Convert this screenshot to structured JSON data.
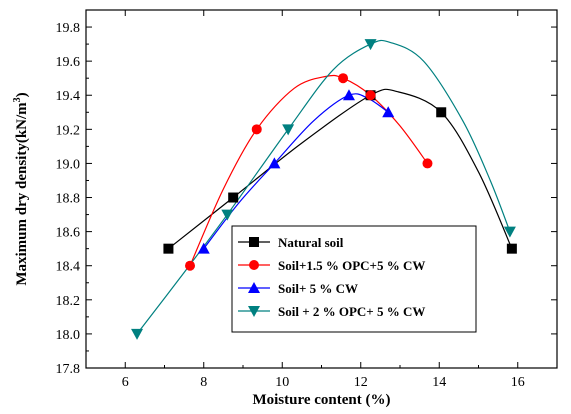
{
  "chart_data": {
    "type": "scatter",
    "xlabel": "Moisture content (%)",
    "ylabel_main": "Maximum dry density(kN/m",
    "ylabel_sup": "3",
    "ylabel_close": ")",
    "xlim": [
      5,
      17
    ],
    "ylim": [
      17.8,
      19.9
    ],
    "xticks": [
      6,
      8,
      10,
      12,
      14,
      16
    ],
    "xtick_labels": [
      "6",
      "8",
      "10",
      "12",
      "14",
      "16"
    ],
    "yticks": [
      17.8,
      18.0,
      18.2,
      18.4,
      18.6,
      18.8,
      19.0,
      19.2,
      19.4,
      19.6,
      19.8
    ],
    "ytick_labels": [
      "17.8",
      "18.0",
      "18.2",
      "18.4",
      "18.6",
      "18.8",
      "19.0",
      "19.2",
      "19.4",
      "19.6",
      "19.8"
    ],
    "grid": false,
    "legend_position": "bottom-center",
    "series": [
      {
        "name": "Natural soil",
        "color": "#000000",
        "marker": "square",
        "points": [
          [
            7.1,
            18.5
          ],
          [
            8.75,
            18.8
          ],
          [
            12.25,
            19.4
          ],
          [
            14.05,
            19.3
          ],
          [
            15.85,
            18.5
          ]
        ],
        "curve": [
          [
            7.1,
            18.5
          ],
          [
            8.75,
            18.8
          ],
          [
            10.5,
            19.12
          ],
          [
            12.25,
            19.4
          ],
          [
            12.95,
            19.42
          ],
          [
            14.05,
            19.3
          ],
          [
            15.0,
            18.95
          ],
          [
            15.85,
            18.5
          ]
        ]
      },
      {
        "name": "Soil+1.5 % OPC+5 %  CW",
        "color": "#ff0000",
        "marker": "circle",
        "points": [
          [
            7.65,
            18.4
          ],
          [
            9.35,
            19.2
          ],
          [
            11.55,
            19.5
          ],
          [
            12.25,
            19.4
          ],
          [
            13.7,
            19.0
          ]
        ],
        "curve": [
          [
            7.65,
            18.4
          ],
          [
            8.5,
            18.85
          ],
          [
            9.35,
            19.2
          ],
          [
            10.3,
            19.44
          ],
          [
            11.1,
            19.51
          ],
          [
            11.55,
            19.5
          ],
          [
            12.25,
            19.4
          ],
          [
            13.0,
            19.22
          ],
          [
            13.7,
            19.0
          ]
        ]
      },
      {
        "name": "Soil+ 5 % CW",
        "color": "#0000ff",
        "marker": "triangle-up",
        "points": [
          [
            8.0,
            18.5
          ],
          [
            9.8,
            19.0
          ],
          [
            11.7,
            19.4
          ],
          [
            12.7,
            19.3
          ]
        ],
        "curve": [
          [
            8.0,
            18.5
          ],
          [
            8.9,
            18.77
          ],
          [
            9.8,
            19.0
          ],
          [
            10.8,
            19.25
          ],
          [
            11.7,
            19.4
          ],
          [
            12.2,
            19.38
          ],
          [
            12.7,
            19.3
          ]
        ]
      },
      {
        "name": "Soil + 2 % OPC+ 5 % CW",
        "color": "#008080",
        "marker": "triangle-down",
        "points": [
          [
            6.3,
            18.0
          ],
          [
            8.6,
            18.7
          ],
          [
            10.15,
            19.2
          ],
          [
            12.25,
            19.7
          ],
          [
            15.8,
            18.6
          ]
        ],
        "curve": [
          [
            6.3,
            18.0
          ],
          [
            7.4,
            18.33
          ],
          [
            8.6,
            18.7
          ],
          [
            10.15,
            19.2
          ],
          [
            11.3,
            19.55
          ],
          [
            12.25,
            19.7
          ],
          [
            12.75,
            19.71
          ],
          [
            13.6,
            19.6
          ],
          [
            14.6,
            19.25
          ],
          [
            15.3,
            18.9
          ],
          [
            15.8,
            18.6
          ]
        ]
      }
    ]
  }
}
